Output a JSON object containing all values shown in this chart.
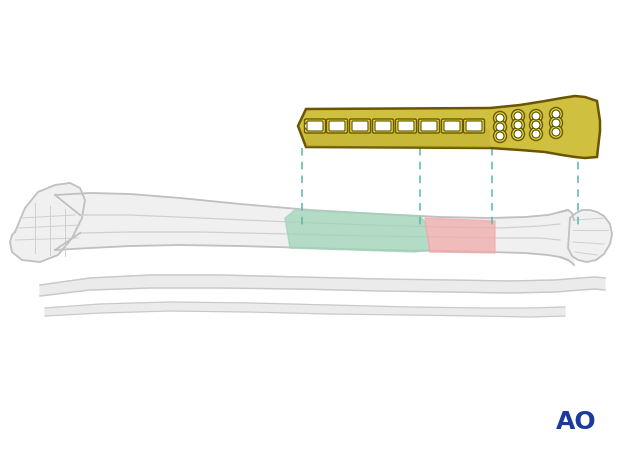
{
  "background_color": "#ffffff",
  "bone_fill": "#f0f0f0",
  "bone_outline": "#c0c0c0",
  "bone_inner": "#d8d8d8",
  "plate_gold": "#cfc040",
  "plate_dark": "#6b5500",
  "plate_shadow": "#a89820",
  "green_color": "#a0d4b8",
  "pink_color": "#f0aaaa",
  "dash_color": "#55bbaa",
  "ao_color": "#1a3a9e",
  "figure_width": 6.2,
  "figure_height": 4.59,
  "dpi": 100
}
